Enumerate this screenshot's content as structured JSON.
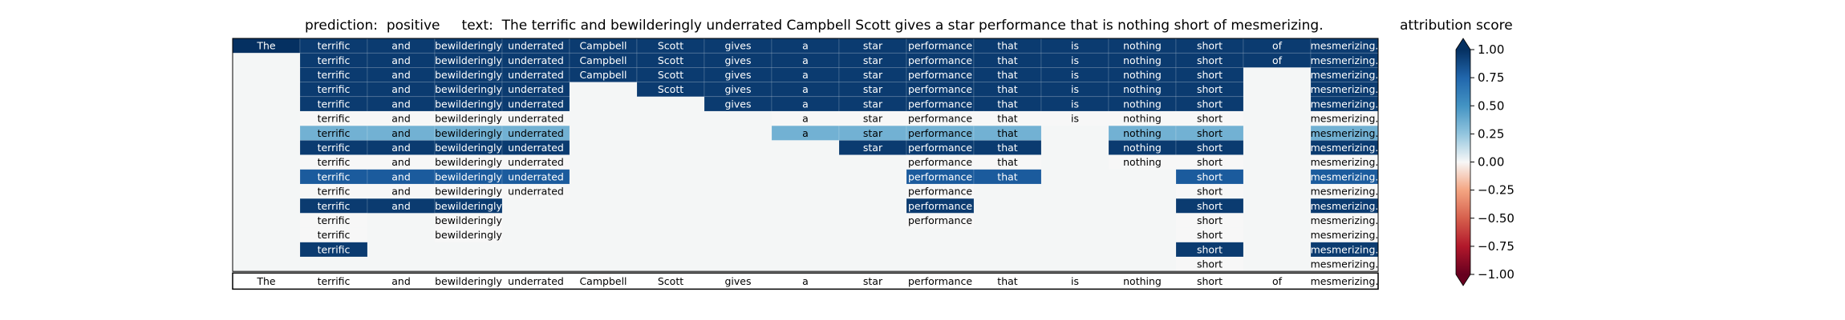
{
  "header": {
    "title": "prediction:  positive     text:  The terrific and bewilderingly underrated Campbell Scott gives a star performance that is nothing short of mesmerizing.",
    "colorbar_label": "attribution score"
  },
  "colors": {
    "negative": "#67001f",
    "neutral": "#f7f7f7",
    "positive": "#053061",
    "background_cell": "#f4f6f6"
  },
  "chart_data": {
    "type": "heatmap",
    "title": "prediction:  positive     text:  The terrific and bewilderingly underrated Campbell Scott gives a star performance that is nothing short of mesmerizing.",
    "colorbar_title": "attribution score",
    "colorbar_ticks": [
      "1.00",
      "0.75",
      "0.50",
      "0.25",
      "0.00",
      "−0.25",
      "−0.50",
      "−0.75",
      "−1.00"
    ],
    "colorbar_range": [
      -1.0,
      1.0
    ],
    "tokens": [
      "The",
      "terrific",
      "and",
      "bewilderingly",
      "underrated",
      "Campbell",
      "Scott",
      "gives",
      "a",
      "star",
      "performance",
      "that",
      "is",
      "nothing",
      "short",
      "of",
      "mesmerizing."
    ],
    "rows": [
      {
        "present": [
          1,
          1,
          1,
          1,
          1,
          1,
          1,
          1,
          1,
          1,
          1,
          1,
          1,
          1,
          1,
          1,
          1
        ],
        "scores": [
          1.0,
          0.95,
          0.95,
          0.95,
          0.95,
          0.95,
          0.95,
          0.95,
          0.95,
          0.95,
          0.95,
          0.95,
          0.95,
          0.95,
          0.95,
          0.95,
          0.95
        ]
      },
      {
        "present": [
          0,
          1,
          1,
          1,
          1,
          1,
          1,
          1,
          1,
          1,
          1,
          1,
          1,
          1,
          1,
          1,
          1
        ],
        "scores": [
          null,
          0.95,
          0.95,
          0.95,
          0.95,
          0.95,
          0.95,
          0.95,
          0.95,
          0.95,
          0.95,
          0.95,
          0.95,
          0.95,
          0.95,
          0.95,
          0.95
        ]
      },
      {
        "present": [
          0,
          1,
          1,
          1,
          1,
          1,
          1,
          1,
          1,
          1,
          1,
          1,
          1,
          1,
          1,
          0,
          1
        ],
        "scores": [
          null,
          0.95,
          0.95,
          0.95,
          0.95,
          0.95,
          0.95,
          0.95,
          0.95,
          0.95,
          0.95,
          0.95,
          0.95,
          0.95,
          0.95,
          null,
          0.95
        ]
      },
      {
        "present": [
          0,
          1,
          1,
          1,
          1,
          0,
          1,
          1,
          1,
          1,
          1,
          1,
          1,
          1,
          1,
          0,
          1
        ],
        "scores": [
          null,
          0.95,
          0.95,
          0.95,
          0.95,
          null,
          0.95,
          0.95,
          0.95,
          0.95,
          0.95,
          0.95,
          0.95,
          0.95,
          0.95,
          null,
          0.95
        ]
      },
      {
        "present": [
          0,
          1,
          1,
          1,
          1,
          0,
          0,
          1,
          1,
          1,
          1,
          1,
          1,
          1,
          1,
          0,
          1
        ],
        "scores": [
          null,
          0.95,
          0.95,
          0.95,
          0.95,
          null,
          null,
          0.95,
          0.95,
          0.95,
          0.95,
          0.95,
          0.95,
          0.95,
          0.95,
          null,
          0.95
        ]
      },
      {
        "present": [
          0,
          1,
          1,
          1,
          1,
          0,
          0,
          0,
          1,
          1,
          1,
          1,
          1,
          1,
          1,
          0,
          1
        ],
        "scores": [
          null,
          0.0,
          0.0,
          0.0,
          0.0,
          null,
          null,
          null,
          0.0,
          0.0,
          0.0,
          0.0,
          0.0,
          0.0,
          0.0,
          null,
          0.0
        ]
      },
      {
        "present": [
          0,
          1,
          1,
          1,
          1,
          0,
          0,
          0,
          1,
          1,
          1,
          1,
          0,
          1,
          1,
          0,
          1
        ],
        "scores": [
          null,
          0.35,
          0.35,
          0.35,
          0.35,
          null,
          null,
          null,
          0.35,
          0.35,
          0.35,
          0.35,
          null,
          0.35,
          0.35,
          null,
          0.35
        ]
      },
      {
        "present": [
          0,
          1,
          1,
          1,
          1,
          0,
          0,
          0,
          0,
          1,
          1,
          1,
          0,
          1,
          1,
          0,
          1
        ],
        "scores": [
          null,
          0.95,
          0.95,
          0.95,
          0.95,
          null,
          null,
          null,
          null,
          0.95,
          0.95,
          0.95,
          null,
          0.95,
          0.95,
          null,
          0.95
        ]
      },
      {
        "present": [
          0,
          1,
          1,
          1,
          1,
          0,
          0,
          0,
          0,
          0,
          1,
          1,
          0,
          1,
          1,
          0,
          1
        ],
        "scores": [
          null,
          0.0,
          0.0,
          0.0,
          0.0,
          null,
          null,
          null,
          null,
          null,
          0.0,
          0.0,
          null,
          0.0,
          0.0,
          null,
          0.0
        ]
      },
      {
        "present": [
          0,
          1,
          1,
          1,
          1,
          0,
          0,
          0,
          0,
          0,
          1,
          1,
          0,
          0,
          1,
          0,
          1
        ],
        "scores": [
          null,
          0.8,
          0.8,
          0.8,
          0.8,
          null,
          null,
          null,
          null,
          null,
          0.8,
          0.8,
          null,
          null,
          0.8,
          null,
          0.8
        ]
      },
      {
        "present": [
          0,
          1,
          1,
          1,
          1,
          0,
          0,
          0,
          0,
          0,
          1,
          0,
          0,
          0,
          1,
          0,
          1
        ],
        "scores": [
          null,
          0.0,
          0.0,
          0.0,
          0.0,
          null,
          null,
          null,
          null,
          null,
          0.0,
          null,
          null,
          null,
          0.0,
          null,
          0.0
        ]
      },
      {
        "present": [
          0,
          1,
          1,
          1,
          0,
          0,
          0,
          0,
          0,
          0,
          1,
          0,
          0,
          0,
          1,
          0,
          1
        ],
        "scores": [
          null,
          0.95,
          0.95,
          0.95,
          null,
          null,
          null,
          null,
          null,
          null,
          0.95,
          null,
          null,
          null,
          0.95,
          null,
          0.95
        ]
      },
      {
        "present": [
          0,
          1,
          0,
          1,
          0,
          0,
          0,
          0,
          0,
          0,
          1,
          0,
          0,
          0,
          1,
          0,
          1
        ],
        "scores": [
          null,
          0.0,
          null,
          0.0,
          null,
          null,
          null,
          null,
          null,
          null,
          0.0,
          null,
          null,
          null,
          0.0,
          null,
          0.0
        ]
      },
      {
        "present": [
          0,
          1,
          0,
          1,
          0,
          0,
          0,
          0,
          0,
          0,
          0,
          0,
          0,
          0,
          1,
          0,
          1
        ],
        "scores": [
          null,
          0.0,
          null,
          0.0,
          null,
          null,
          null,
          null,
          null,
          null,
          null,
          null,
          null,
          null,
          0.0,
          null,
          0.0
        ]
      },
      {
        "present": [
          0,
          1,
          0,
          0,
          0,
          0,
          0,
          0,
          0,
          0,
          0,
          0,
          0,
          0,
          1,
          0,
          1
        ],
        "scores": [
          null,
          0.95,
          null,
          null,
          null,
          null,
          null,
          null,
          null,
          null,
          null,
          null,
          null,
          null,
          0.95,
          null,
          0.95
        ]
      },
      {
        "present": [
          0,
          0,
          0,
          0,
          0,
          0,
          0,
          0,
          0,
          0,
          0,
          0,
          0,
          0,
          1,
          0,
          1
        ],
        "scores": [
          null,
          null,
          null,
          null,
          null,
          null,
          null,
          null,
          null,
          null,
          null,
          null,
          null,
          null,
          0.0,
          null,
          0.0
        ]
      }
    ],
    "footer_tokens": [
      "The",
      "terrific",
      "and",
      "bewilderingly",
      "underrated",
      "Campbell",
      "Scott",
      "gives",
      "a",
      "star",
      "performance",
      "that",
      "is",
      "nothing",
      "short",
      "of",
      "mesmerizing."
    ]
  }
}
